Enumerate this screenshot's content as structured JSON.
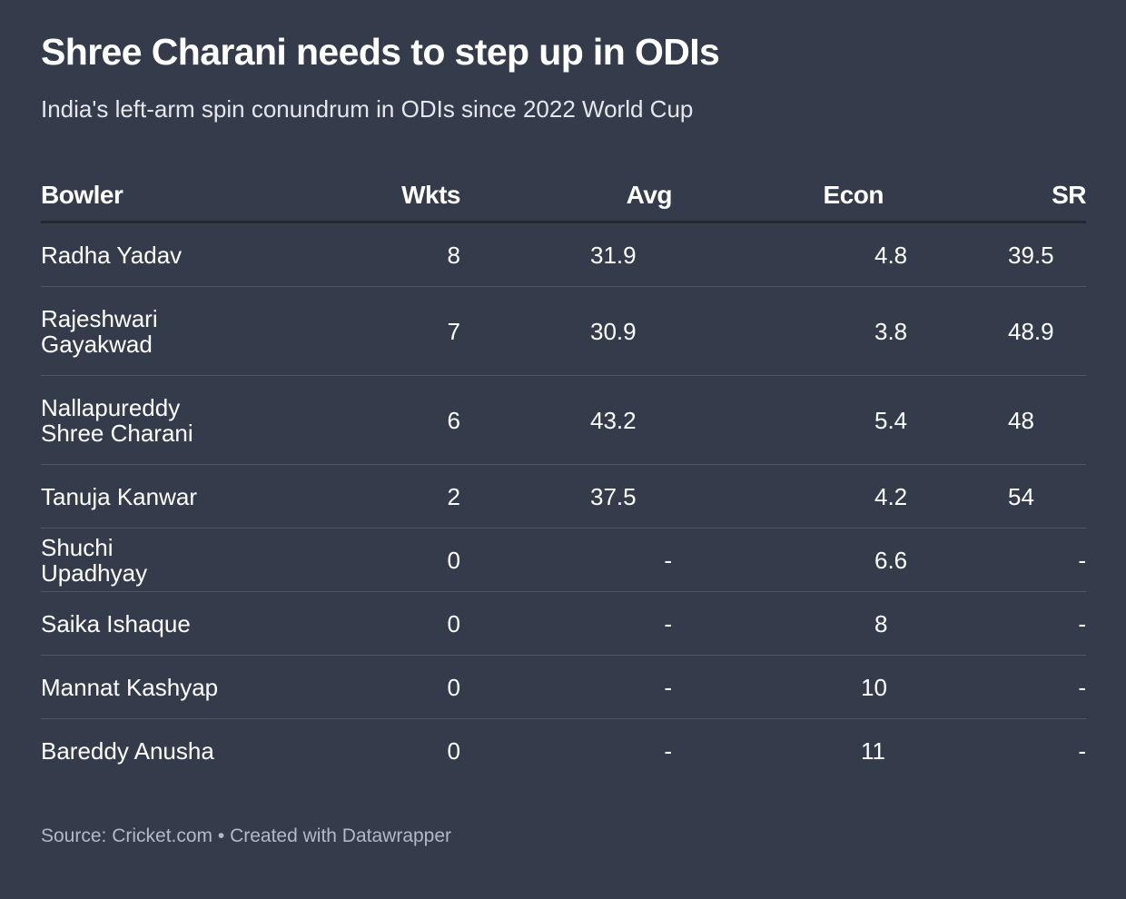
{
  "header": {
    "title": "Shree Charani needs to step up in ODIs",
    "subtitle": "India's left-arm spin conundrum in ODIs since 2022 World Cup"
  },
  "chart_data": {
    "type": "table",
    "columns": [
      "Bowler",
      "Wkts",
      "Avg",
      "Econ",
      "SR"
    ],
    "rows": [
      {
        "bowler": "Radha Yadav",
        "wkts": "8",
        "avg": "31.9",
        "econ": "4.8",
        "sr": "39.5"
      },
      {
        "bowler": "Rajeshwari Gayakwad",
        "wkts": "7",
        "avg": "30.9",
        "econ": "3.8",
        "sr": "48.9"
      },
      {
        "bowler": "Nallapureddy Shree Charani",
        "wkts": "6",
        "avg": "43.2",
        "econ": "5.4",
        "sr": "48"
      },
      {
        "bowler": "Tanuja Kanwar",
        "wkts": "2",
        "avg": "37.5",
        "econ": "4.2",
        "sr": "54"
      },
      {
        "bowler": "Shuchi Upadhyay",
        "wkts": "0",
        "avg": "-",
        "econ": "6.6",
        "sr": "-"
      },
      {
        "bowler": "Saika Ishaque",
        "wkts": "0",
        "avg": "-",
        "econ": "8",
        "sr": "-"
      },
      {
        "bowler": "Mannat Kashyap",
        "wkts": "0",
        "avg": "-",
        "econ": "10",
        "sr": "-"
      },
      {
        "bowler": "Bareddy Anusha",
        "wkts": "0",
        "avg": "-",
        "econ": "11",
        "sr": "-"
      }
    ]
  },
  "footer": {
    "text": "Source: Cricket.com • Created with Datawrapper"
  },
  "colors": {
    "background": "#343c4c",
    "text": "#ffffff",
    "header_rule": "#24292f",
    "row_rule": "#4d5566",
    "footer_text": "#b3b9c4"
  }
}
